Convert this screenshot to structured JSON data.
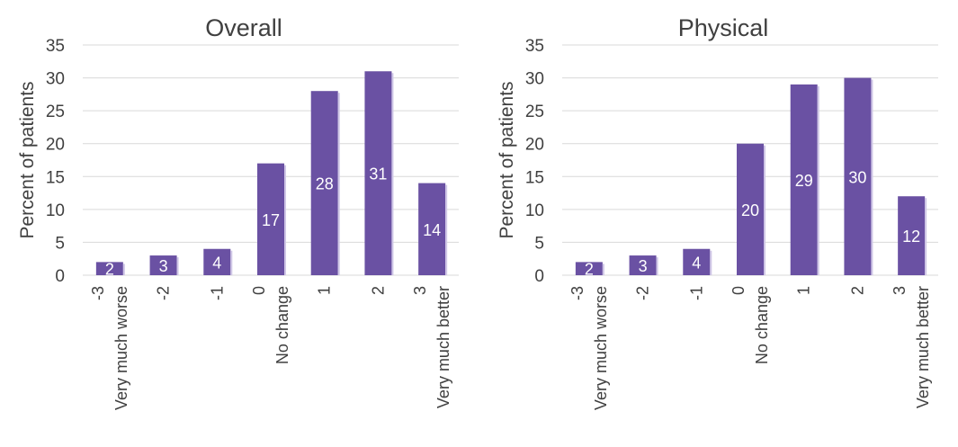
{
  "chart_data": [
    {
      "type": "bar",
      "title": "Overall",
      "ylabel": "Percent of patients",
      "xlabel": "",
      "ylim": [
        0,
        35
      ],
      "yticks": [
        "0",
        "5",
        "10",
        "15",
        "20",
        "25",
        "30",
        "35"
      ],
      "grid": true,
      "categories": [
        [
          "-3",
          "Very much worse"
        ],
        [
          "-2"
        ],
        [
          "-1"
        ],
        [
          "0",
          "No change"
        ],
        [
          "1"
        ],
        [
          "2"
        ],
        [
          "3",
          "Very much better"
        ]
      ],
      "values": [
        2,
        3,
        4,
        17,
        28,
        31,
        14
      ],
      "bar_color": "#6a51a3"
    },
    {
      "type": "bar",
      "title": "Physical",
      "ylabel": "Percent of patients",
      "xlabel": "",
      "ylim": [
        0,
        35
      ],
      "yticks": [
        "0",
        "5",
        "10",
        "15",
        "20",
        "25",
        "30",
        "35"
      ],
      "grid": true,
      "categories": [
        [
          "-3",
          "Very much worse"
        ],
        [
          "-2"
        ],
        [
          "-1"
        ],
        [
          "0",
          "No change"
        ],
        [
          "1"
        ],
        [
          "2"
        ],
        [
          "3",
          "Very much better"
        ]
      ],
      "values": [
        2,
        3,
        4,
        20,
        29,
        30,
        12
      ],
      "bar_color": "#6a51a3"
    }
  ]
}
